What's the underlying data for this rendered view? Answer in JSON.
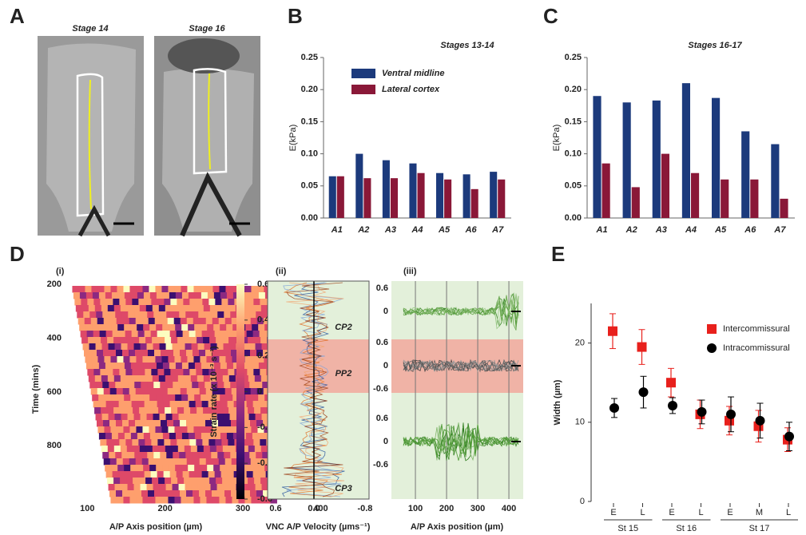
{
  "panel_labels": [
    "A",
    "B",
    "C",
    "D",
    "E"
  ],
  "images": [
    {
      "title": "Stage 14"
    },
    {
      "title": "Stage 16"
    }
  ],
  "chart_data": [
    {
      "type": "bar",
      "title": "Stages 13-14",
      "ylabel": "E(kPa)",
      "legend": true,
      "categories": [
        "A1",
        "A2",
        "A3",
        "A4",
        "A5",
        "A6",
        "A7"
      ],
      "series": [
        {
          "name": "Ventral midline",
          "color": "#1c3a7c",
          "values": [
            0.065,
            0.1,
            0.09,
            0.085,
            0.07,
            0.068,
            0.072
          ]
        },
        {
          "name": "Lateral cortex",
          "color": "#8a1838",
          "values": [
            0.065,
            0.062,
            0.062,
            0.07,
            0.06,
            0.045,
            0.06
          ]
        }
      ],
      "ylim": [
        0,
        0.25
      ],
      "yticks": [
        {
          "value": 0,
          "label": "0.00"
        },
        {
          "value": 0.05,
          "label": "0.05"
        },
        {
          "value": 0.1,
          "label": "0.10"
        },
        {
          "value": 0.15,
          "label": "0.15"
        },
        {
          "value": 0.2,
          "label": "0.20"
        },
        {
          "value": 0.25,
          "label": "0.25"
        }
      ]
    },
    {
      "type": "bar",
      "title": "Stages 16-17",
      "ylabel": "E(kPa)",
      "legend": false,
      "categories": [
        "A1",
        "A2",
        "A3",
        "A4",
        "A5",
        "A6",
        "A7"
      ],
      "series": [
        {
          "color": "#1c3a7c",
          "values": [
            0.19,
            0.18,
            0.183,
            0.21,
            0.187,
            0.135,
            0.115
          ]
        },
        {
          "color": "#8a1838",
          "values": [
            0.085,
            0.048,
            0.1,
            0.07,
            0.06,
            0.06,
            0.03
          ]
        }
      ],
      "ylim": [
        0,
        0.25
      ],
      "yticks": [
        {
          "value": 0,
          "label": "0.00"
        },
        {
          "value": 0.05,
          "label": "0.05"
        },
        {
          "value": 0.1,
          "label": "0.10"
        },
        {
          "value": 0.15,
          "label": "0.15"
        },
        {
          "value": 0.2,
          "label": "0.20"
        },
        {
          "value": 0.25,
          "label": "0.25"
        }
      ]
    },
    {
      "type": "heatmap",
      "subtitle": "(i)",
      "xlabel": "A/P Axis position (µm)",
      "ylabel": "Time (mins)",
      "xlim": [
        75,
        455
      ],
      "xticks": [
        100,
        200,
        300,
        400
      ],
      "ylim": [
        182,
        998
      ],
      "yticks": [
        200,
        400,
        600,
        800
      ],
      "colorbar": {
        "label": "Strain rate (x 10⁻³ s⁻¹)",
        "lim": [
          -0.6,
          0.6
        ],
        "ticks": [
          0.6,
          0.4,
          0.2,
          0,
          -0.2,
          -0.4,
          -0.6
        ]
      }
    },
    {
      "type": "velocity",
      "subtitle": "(ii)",
      "xlabel": "VNC A/P Velocity (µms⁻¹)",
      "xlim": [
        0.725,
        -0.863
      ],
      "xticks": [
        0.6,
        {
          "value": 0,
          "label": "0.0"
        },
        -0.8
      ],
      "annotations": [
        "CP2",
        "PP2",
        "CP3"
      ]
    },
    {
      "type": "traces",
      "subtitle": "(iii)",
      "xlabel": "A/P Axis position (µm)",
      "xlim": [
        23,
        446
      ],
      "xticks": [
        100,
        200,
        300,
        400
      ],
      "rows": [
        {
          "ylim": [
            -0.6,
            0.6
          ],
          "yticks": [
            0.6,
            0
          ],
          "tick_color": "#222"
        },
        {
          "ylim": [
            -0.6,
            0.6
          ],
          "yticks": [
            0.6,
            0,
            -0.6
          ],
          "tick_color": "#b3262c"
        },
        {
          "ylim": [
            -0.6,
            0.6
          ],
          "yticks": [
            0.6,
            0,
            -0.6
          ],
          "tick_color": "#222"
        }
      ]
    },
    {
      "type": "scatter",
      "ylabel": "Width (µm)",
      "categories": [
        "E",
        "L",
        "E",
        "L",
        "E",
        "M",
        "L"
      ],
      "groups": [
        "St 15",
        "St 16",
        "St 17"
      ],
      "series": [
        {
          "name": "Intercommissural",
          "color": "#e8201c",
          "marker": "square",
          "values": [
            21.5,
            19.5,
            15,
            11,
            10.2,
            9.5,
            7.8
          ],
          "errors": [
            2.2,
            2.2,
            1.8,
            1.8,
            1.8,
            2,
            1.5
          ]
        },
        {
          "name": "Intracommissural",
          "color": "#000000",
          "marker": "circle",
          "values": [
            11.8,
            13.8,
            12.1,
            11.3,
            11,
            10.2,
            8.2
          ],
          "errors": [
            1.2,
            2,
            1,
            1.5,
            2.2,
            2.2,
            1.8
          ]
        }
      ],
      "ylim": [
        0,
        25
      ],
      "yticks": [
        0,
        10,
        20
      ]
    }
  ]
}
